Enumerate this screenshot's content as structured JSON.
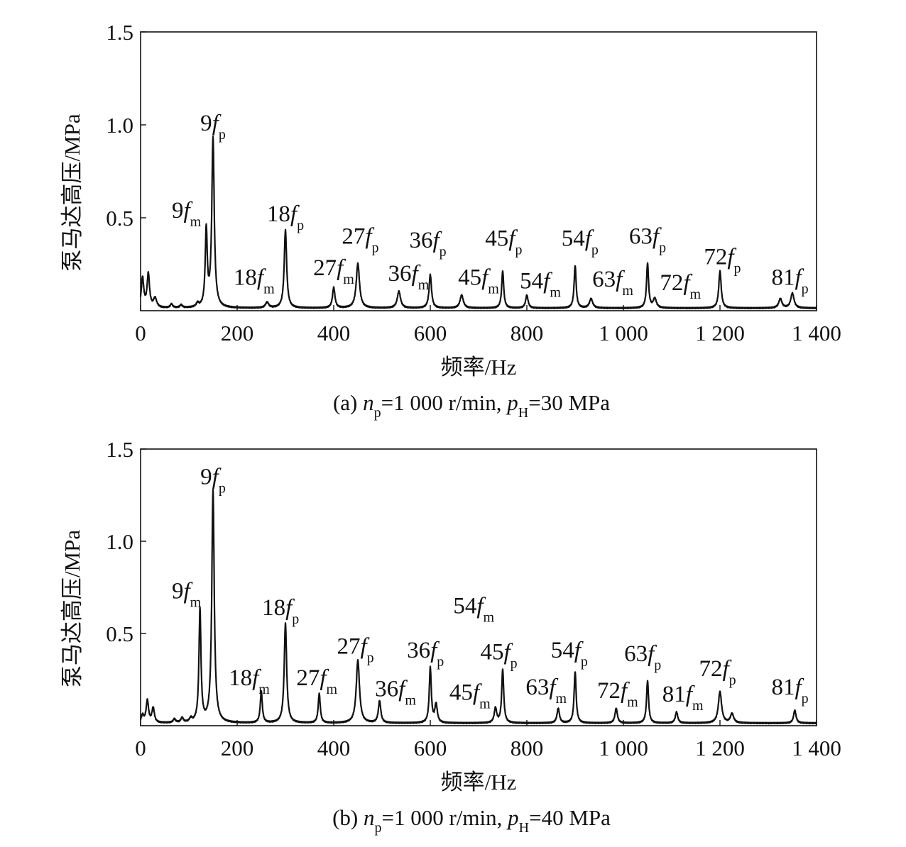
{
  "chart_data": [
    {
      "type": "line",
      "caption_parts": [
        "(a) ",
        "n",
        "p",
        "=1 000 r/min, ",
        "p",
        "H",
        "=30 MPa"
      ],
      "xlabel": "频率/Hz",
      "ylabel": "泵马达高压/MPa",
      "xlim": [
        0,
        1400
      ],
      "ylim": [
        0,
        1.5
      ],
      "xticks": [
        0,
        200,
        400,
        600,
        800,
        1000,
        1200,
        1400
      ],
      "xtick_labels": [
        "0",
        "200",
        "400",
        "600",
        "800",
        "1 000",
        "1 200",
        "1 400"
      ],
      "yticks": [
        0.5,
        1.0,
        1.5
      ],
      "ytick_labels": [
        "0.5",
        "1.0",
        "1.5"
      ],
      "grid": false,
      "series": [
        {
          "baseline": 0.01,
          "peaks": [
            [
              4,
              0.17,
              3
            ],
            [
              16,
              0.19,
              3
            ],
            [
              30,
              0.06,
              4
            ],
            [
              64,
              0.03,
              3
            ],
            [
              84,
              0.025,
              3
            ],
            [
              118,
              0.03,
              3
            ],
            [
              136,
              0.42,
              2.5
            ],
            [
              150,
              0.92,
              3
            ],
            [
              262,
              0.04,
              4
            ],
            [
              300,
              0.43,
              3
            ],
            [
              400,
              0.12,
              3
            ],
            [
              450,
              0.25,
              4
            ],
            [
              535,
              0.1,
              4
            ],
            [
              600,
              0.19,
              3
            ],
            [
              665,
              0.08,
              4
            ],
            [
              750,
              0.21,
              2.5
            ],
            [
              800,
              0.08,
              3
            ],
            [
              900,
              0.24,
              2.5
            ],
            [
              933,
              0.06,
              4
            ],
            [
              1050,
              0.25,
              2.5
            ],
            [
              1065,
              0.06,
              4
            ],
            [
              1200,
              0.21,
              3
            ],
            [
              1325,
              0.06,
              4
            ],
            [
              1350,
              0.09,
              4
            ]
          ]
        }
      ],
      "annotations": [
        {
          "coef": "9",
          "sub": "p",
          "x": 150,
          "y": 0.97
        },
        {
          "coef": "9",
          "sub": "m",
          "x": 95,
          "y": 0.5
        },
        {
          "coef": "18",
          "sub": "p",
          "x": 300,
          "y": 0.48
        },
        {
          "coef": "18",
          "sub": "m",
          "x": 235,
          "y": 0.14
        },
        {
          "coef": "27",
          "sub": "p",
          "x": 455,
          "y": 0.36
        },
        {
          "coef": "27",
          "sub": "m",
          "x": 400,
          "y": 0.19
        },
        {
          "coef": "36",
          "sub": "p",
          "x": 595,
          "y": 0.34
        },
        {
          "coef": "36",
          "sub": "m",
          "x": 555,
          "y": 0.16
        },
        {
          "coef": "45",
          "sub": "p",
          "x": 752,
          "y": 0.35
        },
        {
          "coef": "45",
          "sub": "m",
          "x": 700,
          "y": 0.14
        },
        {
          "coef": "54",
          "sub": "p",
          "x": 910,
          "y": 0.35
        },
        {
          "coef": "54",
          "sub": "m",
          "x": 828,
          "y": 0.12
        },
        {
          "coef": "63",
          "sub": "p",
          "x": 1050,
          "y": 0.36
        },
        {
          "coef": "63",
          "sub": "m",
          "x": 978,
          "y": 0.13
        },
        {
          "coef": "72",
          "sub": "p",
          "x": 1205,
          "y": 0.25
        },
        {
          "coef": "72",
          "sub": "m",
          "x": 1118,
          "y": 0.11
        },
        {
          "coef": "81",
          "sub": "p",
          "x": 1345,
          "y": 0.14
        }
      ]
    },
    {
      "type": "line",
      "caption_parts": [
        "(b) ",
        "n",
        "p",
        "=1 000 r/min, ",
        "p",
        "H",
        "=40 MPa"
      ],
      "xlabel": "频率/Hz",
      "ylabel": "泵马达高压/MPa",
      "xlim": [
        0,
        1400
      ],
      "ylim": [
        0,
        1.5
      ],
      "xticks": [
        0,
        200,
        400,
        600,
        800,
        1000,
        1200,
        1400
      ],
      "xtick_labels": [
        "0",
        "200",
        "400",
        "600",
        "800",
        "1 000",
        "1 200",
        "1 400"
      ],
      "yticks": [
        0.5,
        1.0,
        1.5
      ],
      "ytick_labels": [
        "0.5",
        "1.0",
        "1.5"
      ],
      "grid": false,
      "series": [
        {
          "baseline": 0.01,
          "peaks": [
            [
              4,
              0.05,
              3
            ],
            [
              14,
              0.13,
              3
            ],
            [
              26,
              0.09,
              3
            ],
            [
              70,
              0.03,
              3
            ],
            [
              86,
              0.035,
              3
            ],
            [
              104,
              0.03,
              3
            ],
            [
              123,
              0.62,
              2.5
            ],
            [
              150,
              1.27,
              3
            ],
            [
              250,
              0.18,
              2.5
            ],
            [
              300,
              0.55,
              3
            ],
            [
              370,
              0.17,
              2.5
            ],
            [
              450,
              0.35,
              4
            ],
            [
              495,
              0.13,
              3
            ],
            [
              600,
              0.31,
              2.5
            ],
            [
              612,
              0.11,
              3
            ],
            [
              735,
              0.09,
              3
            ],
            [
              750,
              0.3,
              2.5
            ],
            [
              865,
              0.09,
              3
            ],
            [
              900,
              0.29,
              2.5
            ],
            [
              985,
              0.09,
              3
            ],
            [
              1050,
              0.24,
              2.5
            ],
            [
              1110,
              0.07,
              3
            ],
            [
              1200,
              0.18,
              4
            ],
            [
              1225,
              0.06,
              4
            ],
            [
              1355,
              0.08,
              3
            ]
          ]
        }
      ],
      "annotations": [
        {
          "coef": "9",
          "sub": "p",
          "x": 150,
          "y": 1.31
        },
        {
          "coef": "9",
          "sub": "m",
          "x": 95,
          "y": 0.69
        },
        {
          "coef": "18",
          "sub": "p",
          "x": 290,
          "y": 0.6
        },
        {
          "coef": "18",
          "sub": "m",
          "x": 225,
          "y": 0.22
        },
        {
          "coef": "27",
          "sub": "p",
          "x": 445,
          "y": 0.39
        },
        {
          "coef": "27",
          "sub": "m",
          "x": 365,
          "y": 0.22
        },
        {
          "coef": "36",
          "sub": "p",
          "x": 590,
          "y": 0.37
        },
        {
          "coef": "36",
          "sub": "m",
          "x": 528,
          "y": 0.16
        },
        {
          "coef": "54",
          "sub": "m",
          "x": 690,
          "y": 0.61
        },
        {
          "coef": "45",
          "sub": "p",
          "x": 742,
          "y": 0.36
        },
        {
          "coef": "45",
          "sub": "m",
          "x": 682,
          "y": 0.14
        },
        {
          "coef": "54",
          "sub": "p",
          "x": 888,
          "y": 0.37
        },
        {
          "coef": "63",
          "sub": "p",
          "x": 1040,
          "y": 0.35
        },
        {
          "coef": "63",
          "sub": "m",
          "x": 840,
          "y": 0.17
        },
        {
          "coef": "72",
          "sub": "p",
          "x": 1195,
          "y": 0.27
        },
        {
          "coef": "72",
          "sub": "m",
          "x": 988,
          "y": 0.15
        },
        {
          "coef": "81",
          "sub": "m",
          "x": 1123,
          "y": 0.13
        },
        {
          "coef": "81",
          "sub": "p",
          "x": 1345,
          "y": 0.17
        }
      ]
    }
  ]
}
